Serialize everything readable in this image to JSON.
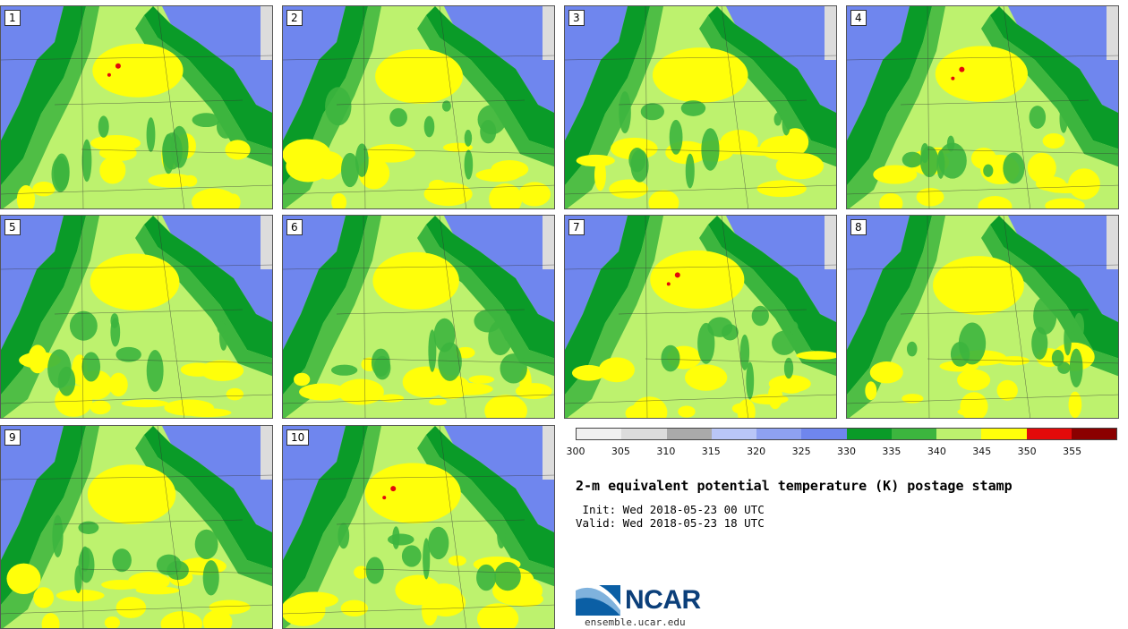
{
  "panels": [
    {
      "label": "1"
    },
    {
      "label": "2"
    },
    {
      "label": "3"
    },
    {
      "label": "4"
    },
    {
      "label": "5"
    },
    {
      "label": "6"
    },
    {
      "label": "7"
    },
    {
      "label": "8"
    },
    {
      "label": "9"
    },
    {
      "label": "10"
    }
  ],
  "colorbar": {
    "colors": [
      "#f0f0f0",
      "#dcdcdc",
      "#aaaaaa",
      "#b9c6f7",
      "#8ea1f2",
      "#6f86ee",
      "#0a9b28",
      "#3cb53e",
      "#bdf26e",
      "#ffff0a",
      "#e30a0a",
      "#8b0000"
    ],
    "ticks": [
      "300",
      "305",
      "310",
      "315",
      "320",
      "325",
      "330",
      "335",
      "340",
      "345",
      "350",
      "355"
    ]
  },
  "title": "2-m equivalent potential temperature (K) postage stamp",
  "init": " Init: Wed 2018-05-23 00 UTC",
  "valid": "Valid: Wed 2018-05-23 18 UTC",
  "logo": {
    "name": "NCAR",
    "url": "ensemble.ucar.edu"
  }
}
